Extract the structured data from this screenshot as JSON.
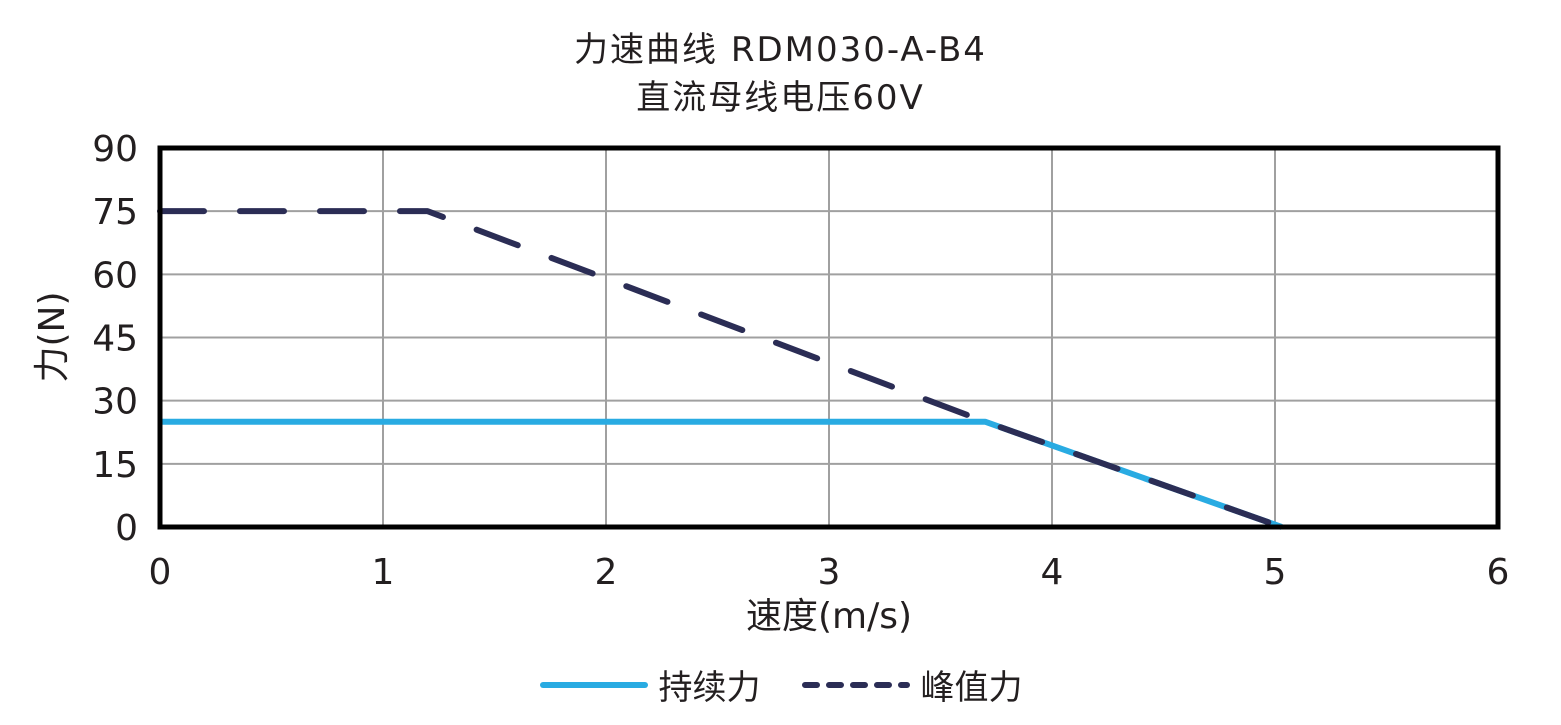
{
  "chart_data": {
    "type": "line",
    "title": "力速曲线 RDM030-A-B4",
    "subtitle": "直流母线电压60V",
    "xlabel": "速度(m/s)",
    "ylabel": "力(N)",
    "xlim": [
      0,
      6
    ],
    "ylim": [
      0,
      90
    ],
    "xticks": [
      "0",
      "1",
      "2",
      "3",
      "4",
      "5",
      "6"
    ],
    "yticks": [
      "0",
      "15",
      "30",
      "45",
      "60",
      "75",
      "90"
    ],
    "grid": true,
    "legend_position": "bottom",
    "series": [
      {
        "name": "持续力",
        "style": "solid",
        "color": "#29abe2",
        "x": [
          0,
          3.7,
          5.03
        ],
        "y": [
          25,
          25,
          0
        ]
      },
      {
        "name": "峰值力",
        "style": "dashed",
        "color": "#2b2d55",
        "x": [
          0,
          1.2,
          3.7,
          5.03
        ],
        "y": [
          75,
          75,
          25,
          0
        ]
      }
    ]
  }
}
